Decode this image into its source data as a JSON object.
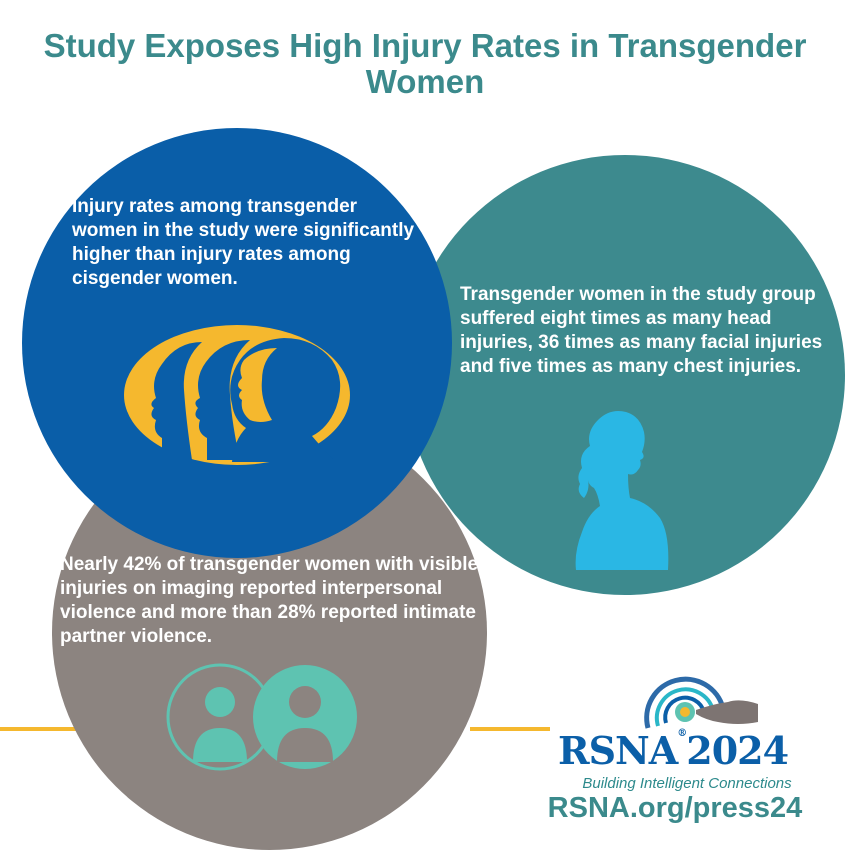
{
  "title": "Study Exposes High Injury Rates in Transgender Women",
  "blue_circle": {
    "text": "Injury rates among transgender women in the study were significantly higher than injury rates among cisgender women."
  },
  "teal_circle": {
    "text": "Transgender women in the study group suffered eight times as many head injuries, 36 times as many facial injuries and five times as many chest injuries."
  },
  "gray_circle": {
    "text": "Nearly 42% of transgender women with visible injuries on imaging reported interpersonal violence and more than 28% reported intimate partner violence."
  },
  "logo": {
    "name": "RSNA",
    "year": "2024",
    "registered": "®",
    "tagline": "Building Intelligent Connections",
    "url": "RSNA.org/press24"
  },
  "colors": {
    "title": "#3b8a8c",
    "blue": "#0a5ea8",
    "teal": "#3d8a8e",
    "gray": "#8c8480",
    "gold": "#f5b82e",
    "light_blue": "#2ab7e4",
    "mint": "#5ec3b1"
  },
  "icons": [
    "three-profiles-icon",
    "woman-silhouette-icon",
    "two-people-icon",
    "rsna-target-hand-icon"
  ]
}
